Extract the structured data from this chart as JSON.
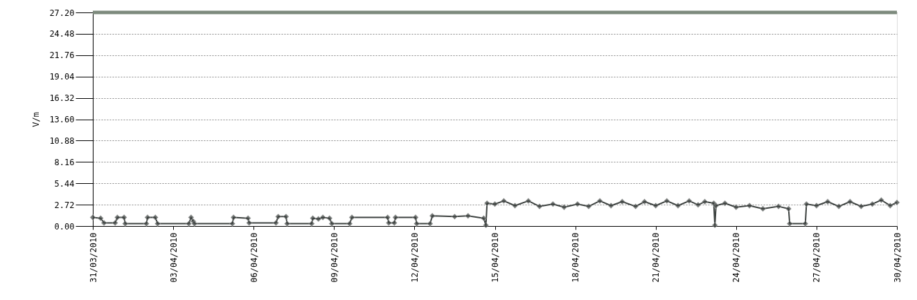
{
  "chart_data": {
    "type": "line",
    "ylabel": "V/m",
    "marker": "diamond",
    "line_style": "solid",
    "grid": "y",
    "legend": false,
    "xlim": [
      "2010-03-31",
      "2010-04-30"
    ],
    "xticks": [
      {
        "value": "2010-03-31",
        "label": "31/03/2010"
      },
      {
        "value": "2010-04-03",
        "label": "03/04/2010"
      },
      {
        "value": "2010-04-06",
        "label": "06/04/2010"
      },
      {
        "value": "2010-04-09",
        "label": "09/04/2010"
      },
      {
        "value": "2010-04-12",
        "label": "12/04/2010"
      },
      {
        "value": "2010-04-15",
        "label": "15/04/2010"
      },
      {
        "value": "2010-04-18",
        "label": "18/04/2010"
      },
      {
        "value": "2010-04-21",
        "label": "21/04/2010"
      },
      {
        "value": "2010-04-24",
        "label": "24/04/2010"
      },
      {
        "value": "2010-04-27",
        "label": "27/04/2010"
      },
      {
        "value": "2010-04-30",
        "label": "30/04/2010"
      }
    ],
    "ylim": [
      0,
      27.2
    ],
    "yticks": [
      {
        "value": 0,
        "label": "0.00"
      },
      {
        "value": 2.72,
        "label": "2.72"
      },
      {
        "value": 5.44,
        "label": "5.44"
      },
      {
        "value": 8.16,
        "label": "8.16"
      },
      {
        "value": 10.88,
        "label": "10.88"
      },
      {
        "value": 13.6,
        "label": "13.60"
      },
      {
        "value": 16.32,
        "label": "16.32"
      },
      {
        "value": 19.04,
        "label": "19.04"
      },
      {
        "value": 21.76,
        "label": "21.76"
      },
      {
        "value": 24.48,
        "label": "24.48"
      },
      {
        "value": 27.2,
        "label": "27.20"
      }
    ],
    "ref_lines": [
      {
        "axis": "y",
        "value": 27.2,
        "color": "#7d8a7d",
        "line_style": "solid"
      }
    ],
    "series": [
      {
        "color": "#3d4240",
        "x": [
          "2010-03-31T00:00",
          "2010-03-31T07:00",
          "2010-03-31T10:00",
          "2010-03-31T20:00",
          "2010-03-31T22:00",
          "2010-04-01T04:00",
          "2010-04-01T05:00",
          "2010-04-02T00:00",
          "2010-04-02T01:00",
          "2010-04-02T08:00",
          "2010-04-02T10:00",
          "2010-04-03T14:00",
          "2010-04-03T16:00",
          "2010-04-03T18:00",
          "2010-04-03T19:00",
          "2010-04-05T05:00",
          "2010-04-05T06:00",
          "2010-04-05T19:00",
          "2010-04-05T20:00",
          "2010-04-06T20:00",
          "2010-04-06T22:00",
          "2010-04-07T05:00",
          "2010-04-07T06:00",
          "2010-04-08T04:00",
          "2010-04-08T05:00",
          "2010-04-08T10:00",
          "2010-04-08T14:00",
          "2010-04-08T20:00",
          "2010-04-08T22:00",
          "2010-04-09T14:00",
          "2010-04-09T16:00",
          "2010-04-11T00:00",
          "2010-04-11T01:00",
          "2010-04-11T06:00",
          "2010-04-11T07:00",
          "2010-04-12T01:00",
          "2010-04-12T02:00",
          "2010-04-12T14:00",
          "2010-04-12T16:00",
          "2010-04-13T12:00",
          "2010-04-14T00:00",
          "2010-04-14T14:00",
          "2010-04-14T16:00",
          "2010-04-14T17:00",
          "2010-04-15T00:00",
          "2010-04-15T08:00",
          "2010-04-15T18:00",
          "2010-04-16T06:00",
          "2010-04-16T16:00",
          "2010-04-17T04:00",
          "2010-04-17T14:00",
          "2010-04-18T02:00",
          "2010-04-18T12:00",
          "2010-04-18T22:00",
          "2010-04-19T08:00",
          "2010-04-19T18:00",
          "2010-04-20T06:00",
          "2010-04-20T14:00",
          "2010-04-21T00:00",
          "2010-04-21T10:00",
          "2010-04-21T20:00",
          "2010-04-22T06:00",
          "2010-04-22T14:00",
          "2010-04-22T20:00",
          "2010-04-23T04:00",
          "2010-04-23T05:00",
          "2010-04-23T06:00",
          "2010-04-23T14:00",
          "2010-04-24T00:00",
          "2010-04-24T12:00",
          "2010-04-25T00:00",
          "2010-04-25T14:00",
          "2010-04-25T23:00",
          "2010-04-26T00:00",
          "2010-04-26T14:00",
          "2010-04-26T15:00",
          "2010-04-27T00:00",
          "2010-04-27T10:00",
          "2010-04-27T20:00",
          "2010-04-28T06:00",
          "2010-04-28T16:00",
          "2010-04-29T02:00",
          "2010-04-29T10:00",
          "2010-04-29T18:00",
          "2010-04-30T00:00"
        ],
        "values": [
          1.1,
          1.0,
          0.4,
          0.4,
          1.1,
          1.1,
          0.3,
          0.3,
          1.1,
          1.1,
          0.3,
          0.3,
          1.1,
          0.6,
          0.3,
          0.3,
          1.1,
          1.0,
          0.4,
          0.4,
          1.2,
          1.2,
          0.3,
          0.3,
          1.0,
          0.9,
          1.1,
          1.0,
          0.3,
          0.3,
          1.1,
          1.1,
          0.4,
          0.4,
          1.1,
          1.1,
          0.3,
          0.3,
          1.3,
          1.2,
          1.3,
          1.0,
          0.1,
          2.9,
          2.8,
          3.2,
          2.6,
          3.2,
          2.5,
          2.8,
          2.4,
          2.8,
          2.5,
          3.2,
          2.6,
          3.1,
          2.5,
          3.1,
          2.6,
          3.2,
          2.6,
          3.2,
          2.7,
          3.1,
          2.9,
          0.1,
          2.6,
          2.9,
          2.4,
          2.6,
          2.2,
          2.5,
          2.2,
          0.3,
          0.3,
          2.8,
          2.6,
          3.1,
          2.5,
          3.1,
          2.5,
          2.8,
          3.3,
          2.6,
          3.0
        ]
      }
    ]
  }
}
